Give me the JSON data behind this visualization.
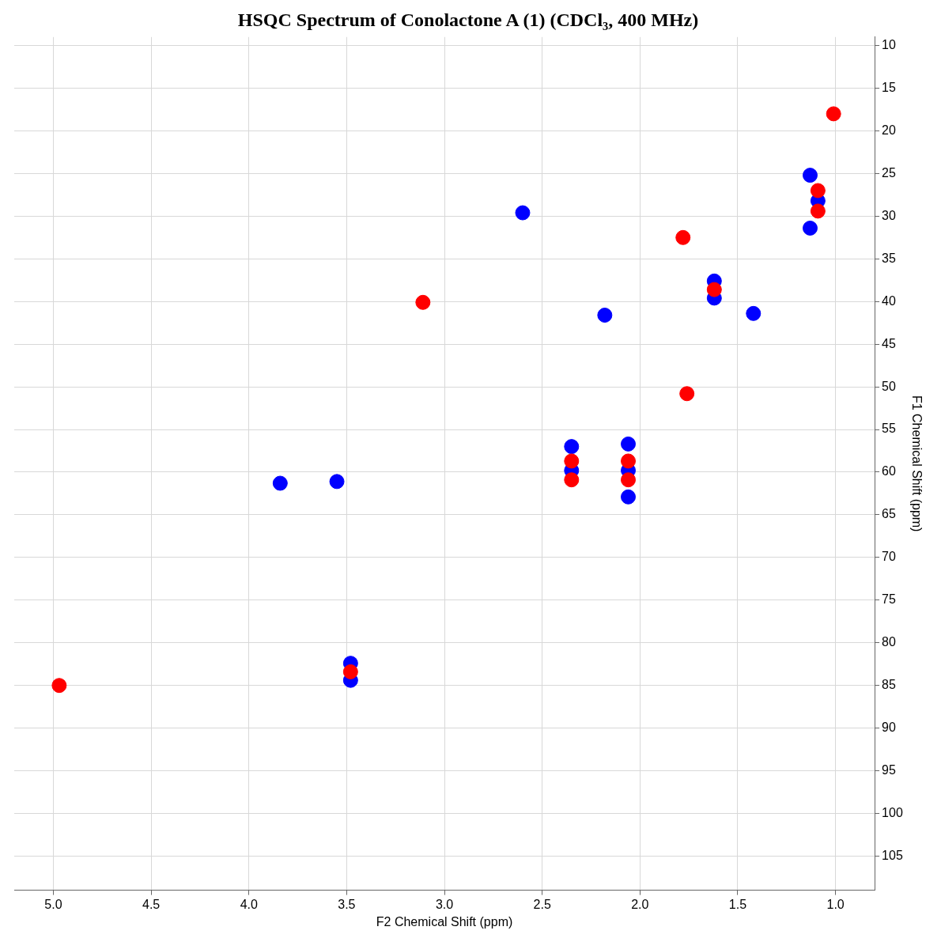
{
  "chart_data": {
    "type": "scatter",
    "title": "HSQC Spectrum of Conolactone A (1) (CDCl₃, 400 MHz)",
    "xlabel": "F2 Chemical Shift (ppm)",
    "ylabel": "F1 Chemical Shift (ppm)",
    "xlim": [
      5.2,
      0.8
    ],
    "xticks": [
      {
        "value": 5,
        "label": "5.0"
      },
      {
        "value": 4.5,
        "label": "4.5"
      },
      {
        "value": 4,
        "label": "4.0"
      },
      {
        "value": 3.5,
        "label": "3.5"
      },
      {
        "value": 3,
        "label": "3.0"
      },
      {
        "value": 2.5,
        "label": "2.5"
      },
      {
        "value": 2,
        "label": "2.0"
      },
      {
        "value": 1.5,
        "label": "1.5"
      },
      {
        "value": 1,
        "label": "1.0"
      }
    ],
    "ylim": [
      109,
      9
    ],
    "yticks": [
      10,
      15,
      20,
      25,
      30,
      35,
      40,
      45,
      50,
      55,
      60,
      65,
      70,
      75,
      80,
      85,
      90,
      95,
      100,
      105
    ],
    "grid": true,
    "legend": false,
    "marker": "circle",
    "series": [
      {
        "color": "#ff0000",
        "x": [
          1.01,
          1.09,
          1.09,
          1.78,
          3.11,
          1.62,
          1.76,
          2.35,
          2.35,
          2.06,
          2.06,
          3.48,
          4.97
        ],
        "values": [
          18,
          27,
          29.4,
          32.5,
          40.1,
          38.6,
          50.8,
          58.7,
          60.9,
          58.7,
          60.9,
          83.4,
          85
        ]
      },
      {
        "color": "#0000ff",
        "x": [
          1.09,
          1.13,
          1.13,
          2.6,
          1.62,
          1.62,
          2.18,
          1.42,
          2.35,
          2.35,
          2.06,
          2.06,
          2.06,
          3.84,
          3.55,
          3.48,
          3.48
        ],
        "values": [
          28.2,
          25.2,
          31.4,
          29.6,
          37.6,
          39.6,
          41.6,
          41.4,
          59.8,
          57,
          59.8,
          56.7,
          62.9,
          61.3,
          61.1,
          82.4,
          84.4
        ]
      }
    ]
  }
}
